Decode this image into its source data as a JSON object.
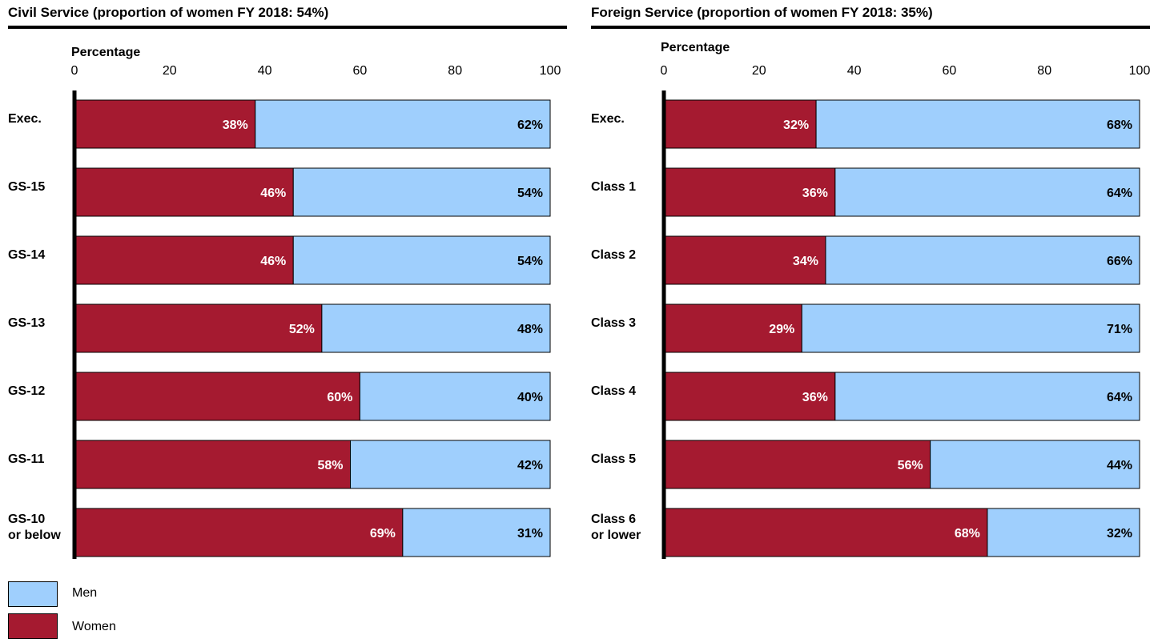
{
  "colors": {
    "women": "#a51a30",
    "men": "#9fcffd",
    "outline": "#000000"
  },
  "legend": [
    {
      "key": "men",
      "label": "Men"
    },
    {
      "key": "women",
      "label": "Women"
    }
  ],
  "chart_data": [
    {
      "type": "bar",
      "orientation": "horizontal",
      "stacked": true,
      "title": "Civil Service (proportion of women FY 2018: 54%)",
      "xlabel": "Percentage",
      "xlim": [
        0,
        100
      ],
      "xticks": [
        0,
        20,
        40,
        60,
        80,
        100
      ],
      "categories": [
        [
          "Exec."
        ],
        [
          "GS-15"
        ],
        [
          "GS-14"
        ],
        [
          "GS-13"
        ],
        [
          "GS-12"
        ],
        [
          "GS-11"
        ],
        [
          "GS-10",
          "or below"
        ]
      ],
      "series": [
        {
          "name": "Women",
          "values": [
            38,
            46,
            46,
            52,
            60,
            58,
            69
          ],
          "labels": [
            "38%",
            "46%",
            "46%",
            "52%",
            "60%",
            "58%",
            "69%"
          ]
        },
        {
          "name": "Men",
          "values": [
            62,
            54,
            54,
            48,
            40,
            42,
            31
          ],
          "labels": [
            "62%",
            "54%",
            "54%",
            "48%",
            "40%",
            "42%",
            "31%"
          ]
        }
      ]
    },
    {
      "type": "bar",
      "orientation": "horizontal",
      "stacked": true,
      "title": "Foreign Service (proportion of women FY 2018: 35%)",
      "xlabel": "Percentage",
      "xlim": [
        0,
        100
      ],
      "xticks": [
        0,
        20,
        40,
        60,
        80,
        100
      ],
      "categories": [
        [
          "Exec."
        ],
        [
          "Class 1"
        ],
        [
          "Class 2"
        ],
        [
          "Class 3"
        ],
        [
          "Class 4"
        ],
        [
          "Class 5"
        ],
        [
          "Class 6",
          "or lower"
        ]
      ],
      "series": [
        {
          "name": "Women",
          "values": [
            32,
            36,
            34,
            29,
            36,
            56,
            68
          ],
          "labels": [
            "32%",
            "36%",
            "34%",
            "29%",
            "36%",
            "56%",
            "68%"
          ]
        },
        {
          "name": "Men",
          "values": [
            68,
            64,
            66,
            71,
            64,
            44,
            32
          ],
          "labels": [
            "68%",
            "64%",
            "66%",
            "71%",
            "64%",
            "44%",
            "32%"
          ]
        }
      ]
    }
  ]
}
